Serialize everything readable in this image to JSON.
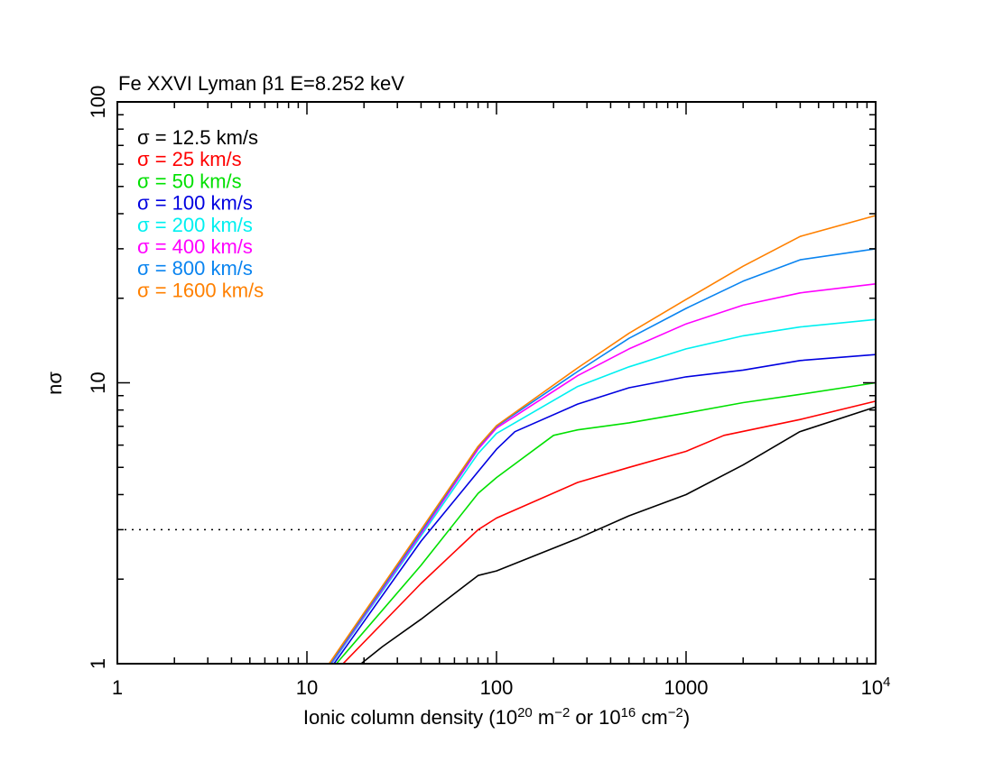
{
  "chart_data": {
    "type": "line",
    "title": "Fe XXVI Lyman β1 E=8.252 keV",
    "xlabel": "Ionic column density (10²⁰ m⁻² or 10¹⁶ cm⁻²)",
    "xlabel_parts": {
      "a": "Ionic column density (10",
      "b": "20",
      "c": " m",
      "d": "−2",
      "e": " or 10",
      "f": "16",
      "g": " cm",
      "h": "−2",
      "i": ")"
    },
    "ylabel": "nσ",
    "xscale": "log",
    "yscale": "log",
    "xlim": [
      1,
      10000
    ],
    "ylim": [
      1,
      100
    ],
    "xticks": [
      {
        "v": 1,
        "label": "1"
      },
      {
        "v": 10,
        "label": "10"
      },
      {
        "v": 100,
        "label": "100"
      },
      {
        "v": 1000,
        "label": "1000"
      },
      {
        "v": 10000,
        "label": "10",
        "sup": "4"
      }
    ],
    "yticks": [
      {
        "v": 1,
        "label": "1"
      },
      {
        "v": 10,
        "label": "10"
      },
      {
        "v": 100,
        "label": "100"
      }
    ],
    "grid": false,
    "legend_placement": "top-left",
    "reference_line": {
      "y": 3,
      "style": "dotted"
    },
    "series": [
      {
        "name": "σ = 12.5 km/s",
        "color": "#000000",
        "points": [
          [
            19.3,
            1
          ],
          [
            25,
            1.15
          ],
          [
            40,
            1.44
          ],
          [
            80,
            2.06
          ],
          [
            100,
            2.14
          ],
          [
            268,
            2.79
          ],
          [
            500,
            3.36
          ],
          [
            1000,
            4.0
          ],
          [
            2000,
            5.1
          ],
          [
            3980,
            6.7
          ],
          [
            10000,
            8.2
          ]
        ]
      },
      {
        "name": "σ = 25 km/s",
        "color": "#ff0000",
        "points": [
          [
            15.5,
            1
          ],
          [
            40,
            1.93
          ],
          [
            80,
            3.0
          ],
          [
            100,
            3.3
          ],
          [
            268,
            4.42
          ],
          [
            500,
            5.0
          ],
          [
            1000,
            5.7
          ],
          [
            1585,
            6.5
          ],
          [
            4000,
            7.4
          ],
          [
            10000,
            8.6
          ]
        ]
      },
      {
        "name": "σ = 50 km/s",
        "color": "#00e000",
        "points": [
          [
            14.3,
            1
          ],
          [
            40,
            2.24
          ],
          [
            80,
            4.04
          ],
          [
            100,
            4.6
          ],
          [
            200,
            6.5
          ],
          [
            268,
            6.8
          ],
          [
            500,
            7.2
          ],
          [
            1000,
            7.8
          ],
          [
            2000,
            8.5
          ],
          [
            4000,
            9.1
          ],
          [
            10000,
            10.0
          ]
        ]
      },
      {
        "name": "σ = 100 km/s",
        "color": "#0000e0",
        "points": [
          [
            13.9,
            1
          ],
          [
            40,
            2.73
          ],
          [
            80,
            4.83
          ],
          [
            100,
            5.8
          ],
          [
            125,
            6.7
          ],
          [
            268,
            8.4
          ],
          [
            500,
            9.6
          ],
          [
            1000,
            10.5
          ],
          [
            2000,
            11.1
          ],
          [
            4000,
            12.0
          ],
          [
            10000,
            12.6
          ]
        ]
      },
      {
        "name": "σ = 200 km/s",
        "color": "#00f0f0",
        "points": [
          [
            13.5,
            1
          ],
          [
            40,
            2.85
          ],
          [
            80,
            5.6
          ],
          [
            100,
            6.6
          ],
          [
            268,
            9.7
          ],
          [
            500,
            11.4
          ],
          [
            1000,
            13.2
          ],
          [
            2000,
            14.7
          ],
          [
            4000,
            15.8
          ],
          [
            10000,
            16.8
          ]
        ]
      },
      {
        "name": "σ = 400 km/s",
        "color": "#ff00ff",
        "points": [
          [
            13.4,
            1
          ],
          [
            40,
            2.9
          ],
          [
            80,
            5.8
          ],
          [
            100,
            6.9
          ],
          [
            268,
            10.6
          ],
          [
            500,
            13.2
          ],
          [
            1000,
            16.2
          ],
          [
            2000,
            18.9
          ],
          [
            4000,
            20.9
          ],
          [
            10000,
            22.5
          ]
        ]
      },
      {
        "name": "σ = 800 km/s",
        "color": "#0a84f0",
        "points": [
          [
            13.3,
            1
          ],
          [
            40,
            2.95
          ],
          [
            80,
            5.9
          ],
          [
            100,
            7.0
          ],
          [
            268,
            10.97
          ],
          [
            500,
            14.4
          ],
          [
            1000,
            18.4
          ],
          [
            2000,
            23.0
          ],
          [
            4000,
            27.4
          ],
          [
            10000,
            30.0
          ]
        ]
      },
      {
        "name": "σ = 1600 km/s",
        "color": "#ff8000",
        "points": [
          [
            13.1,
            1
          ],
          [
            40,
            3.0
          ],
          [
            80,
            5.94
          ],
          [
            100,
            7.04
          ],
          [
            268,
            11.3
          ],
          [
            500,
            15.0
          ],
          [
            1000,
            19.8
          ],
          [
            2000,
            26.0
          ],
          [
            4000,
            33.2
          ],
          [
            10000,
            39.4
          ]
        ]
      }
    ]
  }
}
